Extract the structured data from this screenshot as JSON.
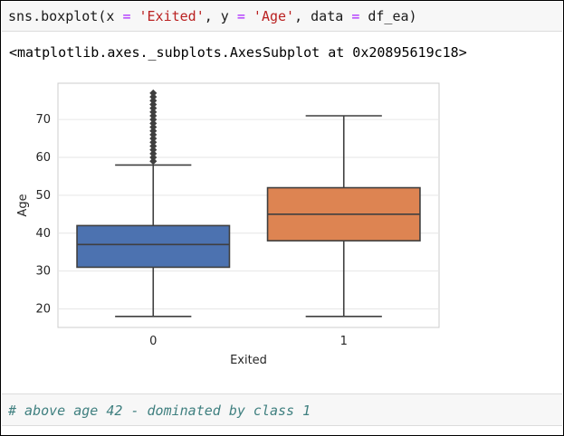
{
  "code_cell": {
    "fn": "sns.boxplot",
    "p1": "(x ",
    "eq1": "=",
    "s1": " 'Exited'",
    "p2": ", y ",
    "eq2": "=",
    "s2": " 'Age'",
    "p3": ", data ",
    "eq3": "=",
    "p4": " df_ea)"
  },
  "output": {
    "repr": "<matplotlib.axes._subplots.AxesSubplot at 0x20895619c18>"
  },
  "chart_data": {
    "type": "box",
    "xlabel": "Exited",
    "ylabel": "Age",
    "categories": [
      "0",
      "1"
    ],
    "colors": [
      "#4c72b0",
      "#dd8452"
    ],
    "ylim": [
      15.1,
      79.6
    ],
    "yticks": [
      20,
      30,
      40,
      50,
      60,
      70
    ],
    "grid": true,
    "boxes": [
      {
        "category": "0",
        "whisker_low": 18,
        "q1": 31,
        "median": 37,
        "q3": 42,
        "whisker_high": 58,
        "outliers": [
          59,
          60,
          61,
          62,
          63,
          64,
          65,
          66,
          67,
          68,
          69,
          70,
          71,
          72,
          73,
          74,
          75,
          76,
          77
        ]
      },
      {
        "category": "1",
        "whisker_low": 18,
        "q1": 38,
        "median": 45,
        "q3": 52,
        "whisker_high": 71,
        "outliers": []
      }
    ]
  },
  "markdown_cell": {
    "text": "# above age 42 - dominated by class 1"
  }
}
